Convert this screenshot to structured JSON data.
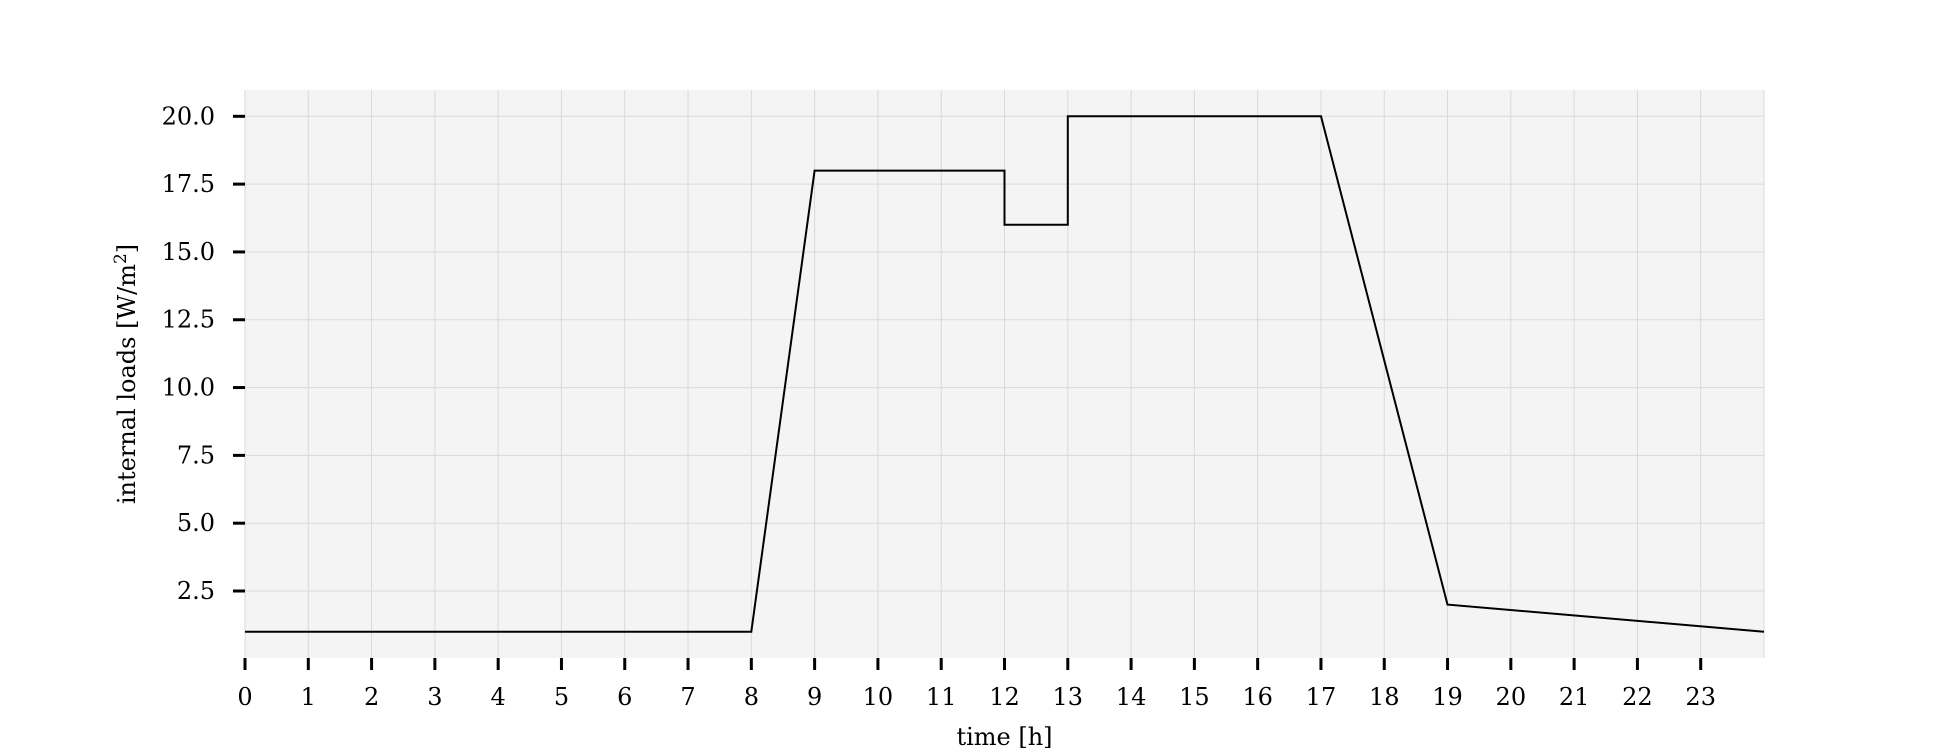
{
  "chart_data": {
    "type": "line",
    "xlabel": "time [h]",
    "ylabel_main": "internal loads [W/m",
    "ylabel_sup": "2",
    "ylabel_close": "]",
    "xlim": [
      0,
      24
    ],
    "ylim": [
      0.03,
      20.97
    ],
    "xticks": [
      0,
      1,
      2,
      3,
      4,
      5,
      6,
      7,
      8,
      9,
      10,
      11,
      12,
      13,
      14,
      15,
      16,
      17,
      18,
      19,
      20,
      21,
      22,
      23
    ],
    "xtick_labels": [
      "0",
      "1",
      "2",
      "3",
      "4",
      "5",
      "6",
      "7",
      "8",
      "9",
      "10",
      "11",
      "12",
      "13",
      "14",
      "15",
      "16",
      "17",
      "18",
      "19",
      "20",
      "21",
      "22",
      "23"
    ],
    "yticks": [
      2.5,
      5.0,
      7.5,
      10.0,
      12.5,
      15.0,
      17.5,
      20.0
    ],
    "ytick_labels": [
      "2.5",
      "5.0",
      "7.5",
      "10.0",
      "12.5",
      "15.0",
      "17.5",
      "20.0"
    ],
    "grid": true,
    "colors": {
      "plot_bg": "#f4f4f4",
      "grid": "#d9d9d9",
      "line": "#000000"
    },
    "series": [
      {
        "x": [
          0,
          8,
          9,
          12,
          12,
          13,
          13,
          17,
          19,
          24
        ],
        "y": [
          1.0,
          1.0,
          18.0,
          18.0,
          16.0,
          16.0,
          20.0,
          20.0,
          2.0,
          1.0
        ]
      }
    ]
  }
}
